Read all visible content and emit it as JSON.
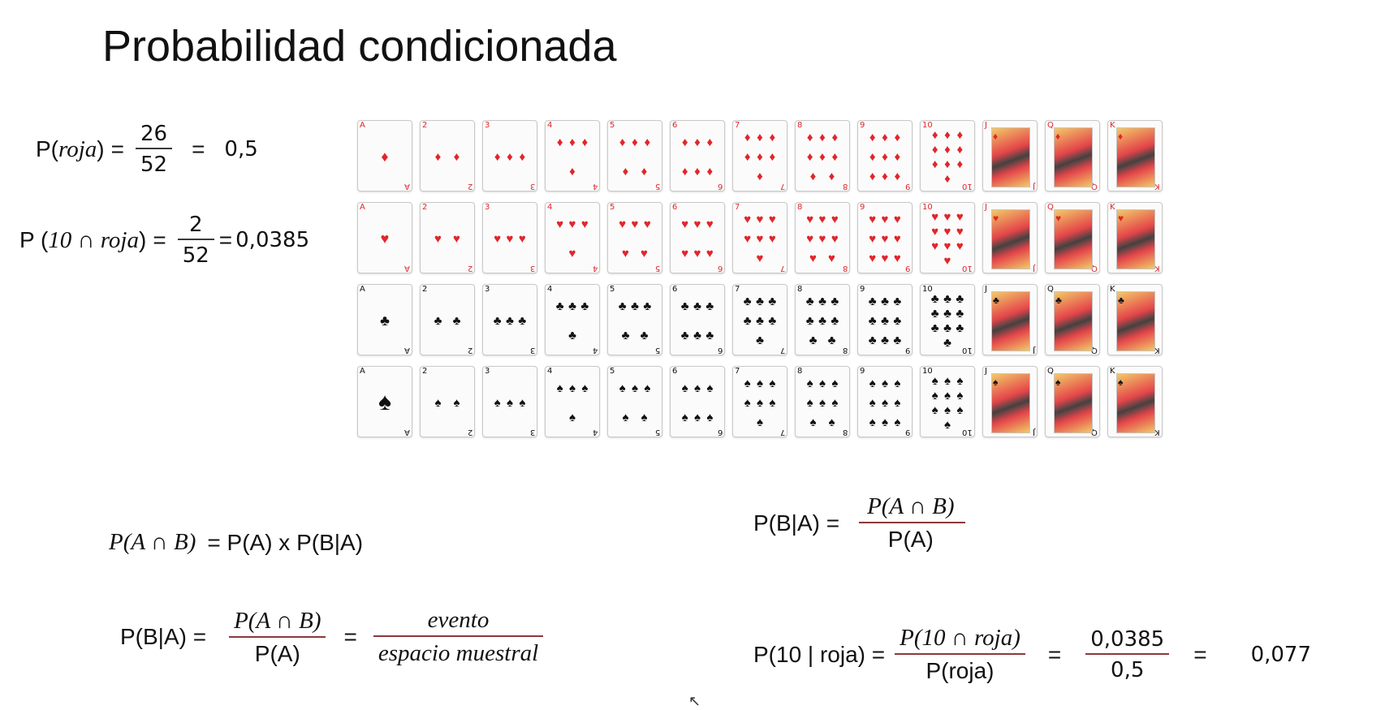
{
  "title": "Probabilidad condicionada",
  "f1": {
    "lhs_p": "P(",
    "lhs_var": "roja",
    "lhs_close": ")",
    "eq": "=",
    "num": "26",
    "den": "52",
    "eq2": "=",
    "result": "0,5"
  },
  "f2": {
    "lhs_p": "P (",
    "lhs_var": "10 ∩ roja",
    "lhs_close": ")",
    "eq": "=",
    "num": "2",
    "den": "52",
    "eq2": "=",
    "result": "0,0385"
  },
  "f3": {
    "lhs": "P(A ∩ B)",
    "rhs": "= P(A) x P(B|A)"
  },
  "f4": {
    "lhs": "P(B|A) =",
    "num": "P(A ∩ B)",
    "den": "P(A)"
  },
  "f5": {
    "lhs": "P(B|A) =",
    "num": "P(A ∩ B)",
    "den": "P(A)",
    "eq": "=",
    "num2": "evento",
    "den2": "espacio muestral"
  },
  "f6": {
    "lhs": "P(10 | roja) =",
    "num": "P(10 ∩ roja)",
    "den": "P(roja)",
    "eq": "=",
    "num2": "0,0385",
    "den2": "0,5",
    "eq2": "=",
    "result": "0,077"
  },
  "cards": {
    "ranks": [
      "A",
      "2",
      "3",
      "4",
      "5",
      "6",
      "7",
      "8",
      "9",
      "10",
      "J",
      "Q",
      "K"
    ],
    "suits": [
      {
        "name": "diamonds",
        "symbol": "♦",
        "color": "#e0262b"
      },
      {
        "name": "hearts",
        "symbol": "♥",
        "color": "#e0262b"
      },
      {
        "name": "clubs",
        "symbol": "♣",
        "color": "#111111"
      },
      {
        "name": "spades",
        "symbol": "♠",
        "color": "#111111"
      }
    ]
  },
  "cursor_icon": "mouse-pointer-icon"
}
